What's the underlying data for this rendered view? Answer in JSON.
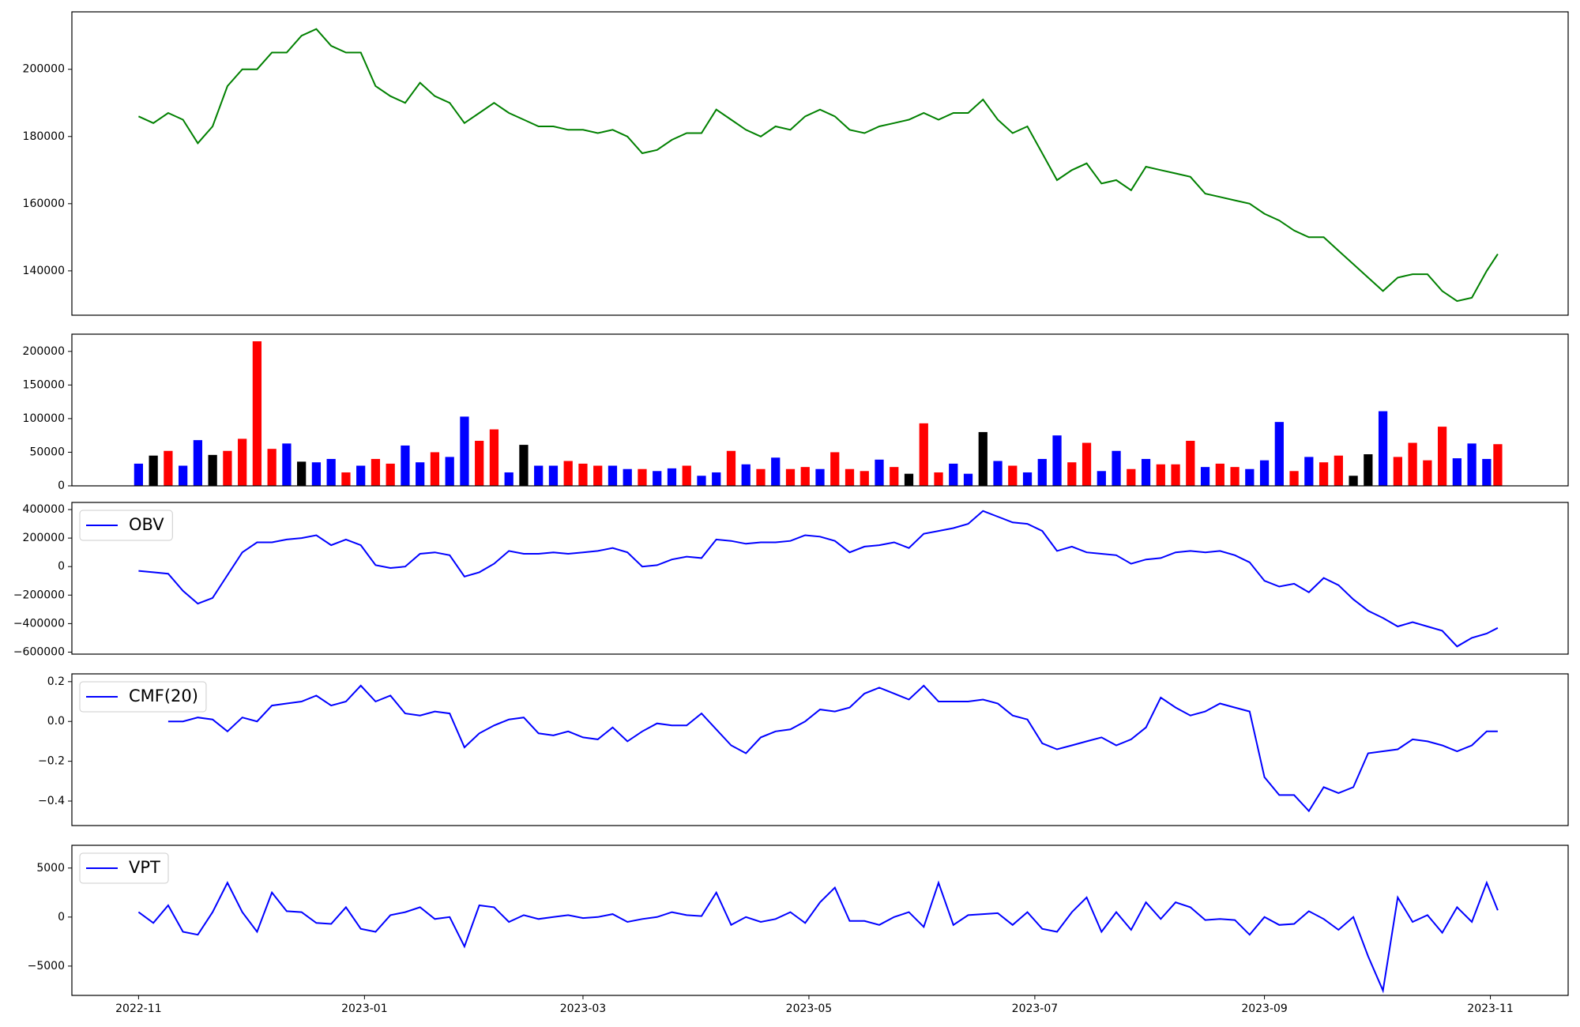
{
  "chart_data": [
    {
      "type": "line",
      "color": "green",
      "x": [
        0,
        4,
        8,
        12,
        16,
        20,
        24,
        28,
        32,
        36,
        40,
        44,
        48,
        52,
        56,
        60,
        64,
        68,
        72,
        76,
        80,
        84,
        88,
        92,
        96,
        100,
        104,
        108,
        112,
        116,
        120,
        124,
        128,
        132,
        136,
        140,
        144,
        148,
        152,
        156,
        160,
        164,
        168,
        172,
        176,
        180,
        184,
        188,
        192,
        196,
        200,
        204,
        208,
        212,
        216,
        220,
        224,
        228,
        232,
        236,
        240,
        244,
        248,
        252,
        256,
        260,
        264,
        268,
        272,
        276,
        280,
        284,
        288,
        292,
        296,
        300,
        304,
        308,
        312,
        316,
        320,
        324,
        328,
        332,
        336,
        340,
        344,
        348,
        352,
        356,
        360,
        364,
        367
      ],
      "values": [
        186000,
        184000,
        187000,
        185000,
        178000,
        183000,
        195000,
        200000,
        200000,
        205000,
        205000,
        210000,
        212000,
        207000,
        205000,
        205000,
        195000,
        192000,
        190000,
        196000,
        192000,
        190000,
        184000,
        187000,
        190000,
        187000,
        185000,
        183000,
        183000,
        182000,
        182000,
        181000,
        182000,
        180000,
        175000,
        176000,
        179000,
        181000,
        181000,
        188000,
        185000,
        182000,
        180000,
        183000,
        182000,
        186000,
        188000,
        186000,
        182000,
        181000,
        183000,
        184000,
        185000,
        187000,
        185000,
        187000,
        187000,
        191000,
        185000,
        181000,
        183000,
        175000,
        167000,
        170000,
        172000,
        166000,
        167000,
        164000,
        171000,
        170000,
        169000,
        168000,
        163000,
        162000,
        161000,
        160000,
        157000,
        155000,
        152000,
        150000,
        150000,
        146000,
        142000,
        138000,
        134000,
        138000,
        139000,
        139000,
        134000,
        131000,
        132000,
        140000,
        145000
      ],
      "xlim": [
        -18,
        386
      ],
      "ylim": [
        126800,
        217100
      ],
      "yticks": [
        140000,
        160000,
        180000,
        200000
      ]
    },
    {
      "type": "bar",
      "x": [
        0,
        4,
        8,
        12,
        16,
        20,
        24,
        28,
        32,
        36,
        40,
        44,
        48,
        52,
        56,
        60,
        64,
        68,
        72,
        76,
        80,
        84,
        88,
        92,
        96,
        100,
        104,
        108,
        112,
        116,
        120,
        124,
        128,
        132,
        136,
        140,
        144,
        148,
        152,
        156,
        160,
        164,
        168,
        172,
        176,
        180,
        184,
        188,
        192,
        196,
        200,
        204,
        208,
        212,
        216,
        220,
        224,
        228,
        232,
        236,
        240,
        244,
        248,
        252,
        256,
        260,
        264,
        268,
        272,
        276,
        280,
        284,
        288,
        292,
        296,
        300,
        304,
        308,
        312,
        316,
        320,
        324,
        328,
        332,
        336,
        340,
        344,
        348,
        352,
        356,
        360,
        364,
        367
      ],
      "values": [
        33000,
        45000,
        52000,
        30000,
        68000,
        46000,
        52000,
        70000,
        215000,
        55000,
        63000,
        36000,
        35000,
        40000,
        20000,
        30000,
        40000,
        33000,
        60000,
        35000,
        50000,
        43000,
        103000,
        67000,
        84000,
        20000,
        61000,
        30000,
        30000,
        37000,
        33000,
        30000,
        30000,
        25000,
        25000,
        22000,
        26000,
        30000,
        15000,
        20000,
        52000,
        32000,
        25000,
        42000,
        25000,
        28000,
        25000,
        50000,
        25000,
        22000,
        39000,
        28000,
        18000,
        93000,
        20000,
        33000,
        18000,
        80000,
        37000,
        30000,
        20000,
        40000,
        75000,
        35000,
        64000,
        22000,
        52000,
        25000,
        40000,
        32000,
        32000,
        67000,
        28000,
        33000,
        28000,
        25000,
        38000,
        95000,
        22000,
        43000,
        35000,
        45000,
        15000,
        47000,
        111000,
        43000,
        64000,
        38000,
        88000,
        41000,
        63000,
        40000,
        62000
      ],
      "colors": [
        "blue",
        "black",
        "red",
        "blue",
        "blue",
        "black",
        "red",
        "red",
        "red",
        "red",
        "blue",
        "black",
        "blue",
        "blue",
        "red",
        "blue",
        "red",
        "red",
        "blue",
        "blue",
        "red",
        "blue",
        "blue",
        "red",
        "red",
        "blue",
        "black",
        "blue",
        "blue",
        "red",
        "red",
        "red",
        "blue",
        "blue",
        "red",
        "blue",
        "blue",
        "red",
        "blue",
        "blue",
        "red",
        "blue",
        "red",
        "blue",
        "red",
        "red",
        "blue",
        "red",
        "red",
        "red",
        "blue",
        "red",
        "black",
        "red",
        "red",
        "blue",
        "blue",
        "black",
        "blue",
        "red",
        "blue",
        "blue",
        "blue",
        "red",
        "red",
        "blue",
        "blue",
        "red",
        "blue",
        "red",
        "red",
        "red",
        "blue",
        "red",
        "red",
        "blue",
        "blue",
        "blue",
        "red",
        "blue",
        "red",
        "red",
        "black",
        "black",
        "blue",
        "red",
        "red",
        "red",
        "red",
        "blue",
        "blue",
        "blue",
        "red"
      ],
      "xlim": [
        -18,
        386
      ],
      "ylim": [
        0,
        225600
      ],
      "yticks": [
        0,
        50000,
        100000,
        150000,
        200000
      ]
    },
    {
      "type": "line",
      "legend": "upper left",
      "x": [
        0,
        4,
        8,
        12,
        16,
        20,
        24,
        28,
        32,
        36,
        40,
        44,
        48,
        52,
        56,
        60,
        64,
        68,
        72,
        76,
        80,
        84,
        88,
        92,
        96,
        100,
        104,
        108,
        112,
        116,
        120,
        124,
        128,
        132,
        136,
        140,
        144,
        148,
        152,
        156,
        160,
        164,
        168,
        172,
        176,
        180,
        184,
        188,
        192,
        196,
        200,
        204,
        208,
        212,
        216,
        220,
        224,
        228,
        232,
        236,
        240,
        244,
        248,
        252,
        256,
        260,
        264,
        268,
        272,
        276,
        280,
        284,
        288,
        292,
        296,
        300,
        304,
        308,
        312,
        316,
        320,
        324,
        328,
        332,
        336,
        340,
        344,
        348,
        352,
        356,
        360,
        364,
        367
      ],
      "series": [
        {
          "name": "OBV",
          "color": "blue",
          "values": [
            -30000,
            -40000,
            -50000,
            -170000,
            -260000,
            -220000,
            -60000,
            100000,
            170000,
            170000,
            190000,
            200000,
            220000,
            150000,
            190000,
            150000,
            10000,
            -10000,
            0,
            90000,
            100000,
            80000,
            -70000,
            -40000,
            20000,
            110000,
            90000,
            90000,
            100000,
            90000,
            100000,
            110000,
            130000,
            100000,
            0,
            10000,
            50000,
            70000,
            60000,
            190000,
            180000,
            160000,
            170000,
            170000,
            180000,
            220000,
            210000,
            180000,
            100000,
            140000,
            150000,
            170000,
            130000,
            230000,
            250000,
            270000,
            300000,
            390000,
            350000,
            310000,
            300000,
            250000,
            110000,
            140000,
            100000,
            90000,
            80000,
            20000,
            50000,
            60000,
            100000,
            110000,
            100000,
            110000,
            80000,
            30000,
            -100000,
            -140000,
            -120000,
            -180000,
            -80000,
            -130000,
            -230000,
            -310000,
            -360000,
            -420000,
            -390000,
            -420000,
            -450000,
            -560000,
            -500000,
            -470000,
            -430000
          ]
        }
      ],
      "xlim": [
        -18,
        386
      ],
      "ylim": [
        -614000,
        450000
      ],
      "yticks": [
        {
          "value": -600000,
          "label": "−600000"
        },
        {
          "value": -400000,
          "label": "−400000"
        },
        {
          "value": -200000,
          "label": "−200000"
        },
        0,
        200000,
        400000
      ]
    },
    {
      "type": "line",
      "legend": "upper left",
      "x": [
        0,
        4,
        8,
        12,
        16,
        20,
        24,
        28,
        32,
        36,
        40,
        44,
        48,
        52,
        56,
        60,
        64,
        68,
        72,
        76,
        80,
        84,
        88,
        92,
        96,
        100,
        104,
        108,
        112,
        116,
        120,
        124,
        128,
        132,
        136,
        140,
        144,
        148,
        152,
        156,
        160,
        164,
        168,
        172,
        176,
        180,
        184,
        188,
        192,
        196,
        200,
        204,
        208,
        212,
        216,
        220,
        224,
        228,
        232,
        236,
        240,
        244,
        248,
        252,
        256,
        260,
        264,
        268,
        272,
        276,
        280,
        284,
        288,
        292,
        296,
        300,
        304,
        308,
        312,
        316,
        320,
        324,
        328,
        332,
        336,
        340,
        344,
        348,
        352,
        356,
        360,
        364,
        367
      ],
      "series": [
        {
          "name": "CMF(20)",
          "color": "blue",
          "values": [
            null,
            null,
            0,
            0,
            0.02,
            0.01,
            -0.05,
            0.02,
            0,
            0.08,
            0.09,
            0.1,
            0.13,
            0.08,
            0.1,
            0.18,
            0.1,
            0.13,
            0.04,
            0.03,
            0.05,
            0.04,
            -0.13,
            -0.06,
            -0.02,
            0.01,
            0.02,
            -0.06,
            -0.07,
            -0.05,
            -0.08,
            -0.09,
            -0.03,
            -0.1,
            -0.05,
            -0.01,
            -0.02,
            -0.02,
            0.04,
            -0.04,
            -0.12,
            -0.16,
            -0.08,
            -0.05,
            -0.04,
            0,
            0.06,
            0.05,
            0.07,
            0.14,
            0.17,
            0.14,
            0.11,
            0.18,
            0.1,
            0.1,
            0.1,
            0.11,
            0.09,
            0.03,
            0.01,
            -0.11,
            -0.14,
            -0.12,
            -0.1,
            -0.08,
            -0.12,
            -0.09,
            -0.03,
            0.12,
            0.07,
            0.03,
            0.05,
            0.09,
            0.07,
            0.05,
            -0.28,
            -0.37,
            -0.37,
            -0.45,
            -0.33,
            -0.36,
            -0.33,
            -0.16,
            -0.15,
            -0.14,
            -0.09,
            -0.1,
            -0.12,
            -0.15,
            -0.12,
            -0.05,
            -0.05
          ]
        }
      ],
      "xlim": [
        -18,
        386
      ],
      "ylim": [
        -0.523,
        0.239
      ],
      "yticks": [
        {
          "value": -0.4,
          "label": "−0.4"
        },
        {
          "value": -0.2,
          "label": "−0.2"
        },
        {
          "value": 0,
          "label": "0.0"
        },
        0.2
      ]
    },
    {
      "type": "line",
      "legend": "upper left",
      "x": [
        0,
        4,
        8,
        12,
        16,
        20,
        24,
        28,
        32,
        36,
        40,
        44,
        48,
        52,
        56,
        60,
        64,
        68,
        72,
        76,
        80,
        84,
        88,
        92,
        96,
        100,
        104,
        108,
        112,
        116,
        120,
        124,
        128,
        132,
        136,
        140,
        144,
        148,
        152,
        156,
        160,
        164,
        168,
        172,
        176,
        180,
        184,
        188,
        192,
        196,
        200,
        204,
        208,
        212,
        216,
        220,
        224,
        228,
        232,
        236,
        240,
        244,
        248,
        252,
        256,
        260,
        264,
        268,
        272,
        276,
        280,
        284,
        288,
        292,
        296,
        300,
        304,
        308,
        312,
        316,
        320,
        324,
        328,
        332,
        336,
        340,
        344,
        348,
        352,
        356,
        360,
        364,
        367
      ],
      "series": [
        {
          "name": "VPT",
          "color": "blue",
          "values": [
            500,
            -600,
            1200,
            -1500,
            -1800,
            500,
            3500,
            500,
            -1500,
            2500,
            600,
            500,
            -600,
            -700,
            1000,
            -1200,
            -1500,
            200,
            500,
            1000,
            -200,
            0,
            -3000,
            1200,
            1000,
            -500,
            200,
            -200,
            0,
            200,
            -100,
            0,
            300,
            -500,
            -200,
            0,
            500,
            200,
            100,
            2500,
            -800,
            0,
            -500,
            -200,
            500,
            -600,
            1500,
            3000,
            -400,
            -400,
            -800,
            0,
            500,
            -1000,
            3500,
            -800,
            200,
            300,
            400,
            -800,
            500,
            -1200,
            -1500,
            500,
            2000,
            -1500,
            500,
            -1300,
            1500,
            -200,
            1500,
            1000,
            -300,
            -200,
            -300,
            -1800,
            0,
            -800,
            -700,
            600,
            -200,
            -1300,
            0,
            -4000,
            -7500,
            2000,
            -500,
            200,
            -1600,
            1000,
            -500,
            3500,
            700
          ]
        }
      ],
      "xlim": [
        -18,
        386
      ],
      "ylim": [
        -7990,
        7320
      ],
      "yticks": [
        {
          "value": -5000,
          "label": "−5000"
        },
        0,
        5000
      ],
      "xticks": [
        {
          "value": 0,
          "label": "2022-11"
        },
        {
          "value": 61,
          "label": "2023-01"
        },
        {
          "value": 120,
          "label": "2023-03"
        },
        {
          "value": 181,
          "label": "2023-05"
        },
        {
          "value": 242,
          "label": "2023-07"
        },
        {
          "value": 304,
          "label": "2023-09"
        },
        {
          "value": 365,
          "label": "2023-11"
        }
      ]
    }
  ]
}
